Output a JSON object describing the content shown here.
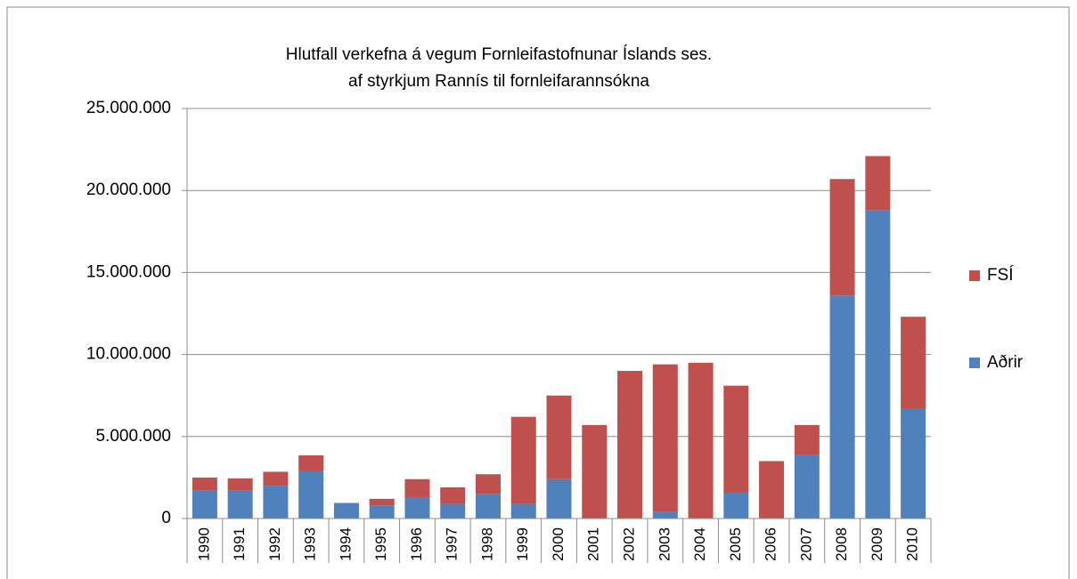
{
  "chart_data": {
    "type": "stacked_bar",
    "title": [
      "Hlutfall verkefna á vegum Fornleifastofnunar Íslands ses.",
      "af styrkjum Rannís til fornleifarannsókna"
    ],
    "categories": [
      "1990",
      "1991",
      "1992",
      "1993",
      "1994",
      "1995",
      "1996",
      "1997",
      "1998",
      "1999",
      "2000",
      "2001",
      "2002",
      "2003",
      "2004",
      "2005",
      "2006",
      "2007",
      "2008",
      "2009",
      "2010"
    ],
    "series": [
      {
        "name": "Aðrir",
        "color": "#4f81bd",
        "values": [
          1700000,
          1700000,
          2000000,
          2900000,
          950000,
          800000,
          1300000,
          900000,
          1500000,
          900000,
          2400000,
          0,
          0,
          400000,
          0,
          1600000,
          0,
          3900000,
          13600000,
          18800000,
          6700000
        ]
      },
      {
        "name": "FSÍ",
        "color": "#c0504d",
        "values": [
          800000,
          750000,
          850000,
          950000,
          0,
          400000,
          1100000,
          1000000,
          1200000,
          5300000,
          5100000,
          5700000,
          9000000,
          9000000,
          9500000,
          6500000,
          3500000,
          1800000,
          7100000,
          3300000,
          5600000
        ]
      }
    ],
    "ylim": [
      0,
      25000000
    ],
    "yticks": [
      0,
      {
        "value": 5000000,
        "label": "5.000.000"
      },
      {
        "value": 10000000,
        "label": "10.000.000"
      },
      {
        "value": 15000000,
        "label": "15.000.000"
      },
      {
        "value": 20000000,
        "label": "20.000.000"
      },
      {
        "value": 25000000,
        "label": "25.000.000"
      }
    ],
    "grid": true,
    "legend": "right"
  }
}
